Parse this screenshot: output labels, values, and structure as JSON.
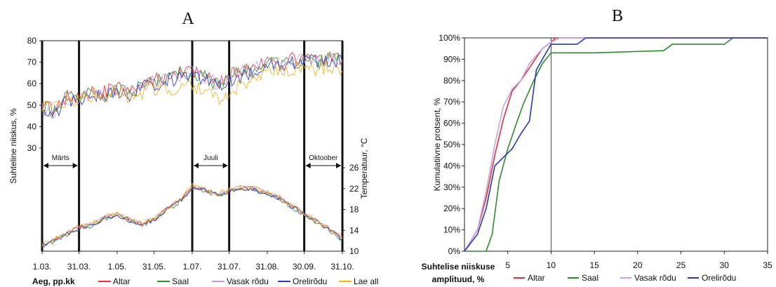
{
  "colors": {
    "altar": "#e0303a",
    "saal": "#2e8b2e",
    "vasak": "#c8a0e0",
    "orel": "#2838b8",
    "lae": "#f0b020"
  },
  "chart_data": [
    {
      "panel": "A",
      "type": "line",
      "title": "A",
      "xlabel": "Aeg, pp.kk",
      "ylabel_left": "Suhteline niiskus, %",
      "ylabel_right": "Temperatuur, °C",
      "x_ticks": [
        "1.03.",
        "31.03.",
        "1.05.",
        "31.05.",
        "1.07.",
        "31.07.",
        "31.08.",
        "30.09.",
        "31.10."
      ],
      "x_tick_days": [
        0,
        30,
        61,
        91,
        122,
        152,
        183,
        213,
        244
      ],
      "rh_ticks": [
        30,
        40,
        50,
        60,
        70,
        80
      ],
      "temp_ticks": [
        10,
        14,
        18,
        22,
        26
      ],
      "rh_ylim": [
        30,
        80
      ],
      "temp_ylim": [
        10,
        26
      ],
      "periods": [
        {
          "label": "Märts",
          "start": 0,
          "end": 30
        },
        {
          "label": "Juuli",
          "start": 122,
          "end": 152
        },
        {
          "label": "Oktoober",
          "start": 213,
          "end": 244
        }
      ],
      "series": [
        {
          "name": "Altar",
          "key": "altar",
          "rh": [
            50,
            48,
            54,
            53,
            57,
            56,
            58,
            56,
            60,
            62,
            63,
            65,
            66,
            64,
            60,
            64,
            66,
            68,
            69,
            70,
            71,
            72,
            71,
            72,
            71
          ],
          "temp": [
            11.2,
            12.1,
            13.4,
            14.6,
            15.1,
            16.4,
            17.1,
            16.0,
            15.2,
            16.2,
            18.1,
            19.7,
            22.2,
            21.8,
            20.8,
            21.6,
            22.2,
            21.9,
            21.2,
            20.1,
            18.6,
            17.1,
            15.6,
            14.1,
            12.4
          ]
        },
        {
          "name": "Saal",
          "key": "saal",
          "rh": [
            49,
            47,
            54,
            52,
            56,
            55,
            57,
            55,
            59,
            61,
            62,
            65,
            65,
            63,
            59,
            63,
            65,
            67,
            69,
            69,
            70,
            71,
            70,
            71,
            70
          ],
          "temp": [
            11.0,
            11.9,
            13.2,
            14.4,
            14.9,
            16.2,
            16.9,
            15.8,
            15.0,
            16.0,
            17.9,
            19.5,
            22.0,
            21.6,
            20.6,
            21.4,
            22.0,
            21.7,
            21.0,
            19.9,
            18.4,
            16.9,
            15.4,
            13.9,
            12.2
          ]
        },
        {
          "name": "Vasak rõdu",
          "key": "vasak",
          "rh": [
            48,
            46,
            53,
            52,
            56,
            55,
            57,
            55,
            59,
            61,
            62,
            64,
            66,
            63,
            60,
            63,
            66,
            68,
            69,
            70,
            71,
            72,
            71,
            72,
            71
          ],
          "temp": [
            11.3,
            12.2,
            13.5,
            14.7,
            15.2,
            16.5,
            17.2,
            16.1,
            15.3,
            16.3,
            18.2,
            19.8,
            22.4,
            21.9,
            20.9,
            21.7,
            22.3,
            22.0,
            21.3,
            20.2,
            18.7,
            17.2,
            15.7,
            14.2,
            12.5
          ]
        },
        {
          "name": "Orelirõdu",
          "key": "orel",
          "rh": [
            47,
            45,
            53,
            51,
            55,
            54,
            56,
            54,
            58,
            60,
            61,
            63,
            64,
            62,
            58,
            62,
            64,
            66,
            68,
            69,
            70,
            71,
            70,
            71,
            70
          ],
          "temp": [
            11.1,
            12.0,
            13.3,
            14.5,
            15.0,
            16.3,
            17.0,
            15.9,
            15.1,
            16.1,
            18.0,
            19.6,
            22.1,
            21.7,
            20.7,
            21.5,
            22.1,
            21.8,
            21.1,
            20.0,
            18.5,
            17.0,
            15.5,
            14.0,
            12.3
          ]
        },
        {
          "name": "Lae all",
          "key": "lae",
          "rh": [
            50,
            48,
            53,
            52,
            55,
            54,
            56,
            54,
            56,
            58,
            57,
            59,
            60,
            56,
            52,
            56,
            60,
            63,
            65,
            66,
            67,
            68,
            67,
            68,
            66
          ],
          "temp": [
            11.4,
            12.3,
            13.6,
            14.8,
            15.3,
            16.6,
            17.3,
            16.2,
            15.4,
            16.4,
            18.3,
            19.9,
            22.6,
            22.1,
            21.0,
            21.8,
            22.4,
            22.1,
            21.4,
            20.3,
            18.8,
            17.3,
            15.8,
            14.3,
            12.6
          ]
        }
      ]
    },
    {
      "panel": "B",
      "type": "line",
      "title": "B",
      "xlabel": "Suhtelise niiskuse amplituud, %",
      "xlabel_line1": "Suhtelise niiskuse",
      "xlabel_line2": "amplituud, %",
      "ylabel": "Kumulatiivne protsent, %",
      "xlim": [
        0,
        35
      ],
      "x_ticks": [
        5,
        10,
        15,
        20,
        25,
        30,
        35
      ],
      "x_tick_labels": [
        "5",
        "10",
        "15",
        "20",
        "25",
        "30",
        "35"
      ],
      "ylim": [
        0,
        100
      ],
      "y_ticks": [
        0,
        10,
        20,
        30,
        40,
        50,
        60,
        70,
        80,
        90,
        100
      ],
      "y_tick_labels": [
        "0%",
        "10%",
        "20%",
        "30%",
        "40%",
        "50%",
        "60%",
        "70%",
        "80%",
        "90%",
        "100%"
      ],
      "reference_x": 10,
      "series": [
        {
          "name": "Altar",
          "key": "altar",
          "points": [
            [
              0,
              0
            ],
            [
              1.5,
              10
            ],
            [
              2.5,
              25
            ],
            [
              3.5,
              45
            ],
            [
              4.5,
              62
            ],
            [
              5.5,
              75
            ],
            [
              6.5,
              80
            ],
            [
              7.5,
              86
            ],
            [
              9,
              95
            ],
            [
              10,
              98
            ],
            [
              10.5,
              100
            ],
            [
              35,
              100
            ]
          ]
        },
        {
          "name": "Saal",
          "key": "saal",
          "points": [
            [
              0,
              0
            ],
            [
              2.5,
              0
            ],
            [
              3.2,
              8
            ],
            [
              4,
              33
            ],
            [
              5,
              48
            ],
            [
              6,
              60
            ],
            [
              6.8,
              69
            ],
            [
              8,
              80
            ],
            [
              9,
              88
            ],
            [
              10,
              93
            ],
            [
              15,
              93
            ],
            [
              23,
              94
            ],
            [
              24,
              97
            ],
            [
              30,
              97
            ],
            [
              31,
              100
            ],
            [
              35,
              100
            ]
          ]
        },
        {
          "name": "Vasak rõdu",
          "key": "vasak",
          "points": [
            [
              0,
              0
            ],
            [
              1.5,
              10
            ],
            [
              2.5,
              28
            ],
            [
              3.5,
              50
            ],
            [
              4.5,
              68
            ],
            [
              5.5,
              76
            ],
            [
              6.5,
              80
            ],
            [
              7.5,
              88
            ],
            [
              9,
              95
            ],
            [
              10,
              98
            ],
            [
              11,
              100
            ],
            [
              35,
              100
            ]
          ]
        },
        {
          "name": "Orelirõdu",
          "key": "orel",
          "points": [
            [
              0,
              0
            ],
            [
              1.5,
              8
            ],
            [
              2.5,
              20
            ],
            [
              3.5,
              40
            ],
            [
              4.5,
              44
            ],
            [
              5.5,
              48
            ],
            [
              6.5,
              55
            ],
            [
              7.5,
              61
            ],
            [
              8.3,
              85
            ],
            [
              9,
              90
            ],
            [
              10,
              97
            ],
            [
              12,
              97
            ],
            [
              13,
              97
            ],
            [
              14,
              100
            ],
            [
              35,
              100
            ]
          ]
        }
      ]
    }
  ]
}
